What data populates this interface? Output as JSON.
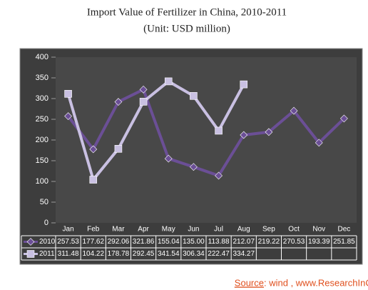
{
  "chart_data": {
    "type": "line",
    "title": "Import Value of Fertilizer in China, 2010-2011",
    "subtitle": "(Unit: USD million)",
    "categories": [
      "Jan",
      "Feb",
      "Mar",
      "Apr",
      "May",
      "Jun",
      "Jul",
      "Aug",
      "Sep",
      "Oct",
      "Nov",
      "Dec"
    ],
    "series": [
      {
        "name": "2010",
        "color": "#6b4f96",
        "marker": "diamond",
        "values": [
          257.53,
          177.62,
          292.06,
          321.86,
          155.04,
          135.0,
          113.88,
          212.07,
          219.22,
          270.53,
          193.39,
          251.85
        ],
        "value_labels": [
          "257.53",
          "177.62",
          "292.06",
          "321.86",
          "155.04",
          "135.00",
          "113.88",
          "212.07",
          "219.22",
          "270.53",
          "193.39",
          "251.85"
        ]
      },
      {
        "name": "2011",
        "color": "#c9c0e2",
        "marker": "square",
        "values": [
          311.48,
          104.22,
          178.78,
          292.45,
          341.54,
          306.34,
          222.47,
          334.27,
          null,
          null,
          null,
          null
        ],
        "value_labels": [
          "311.48",
          "104.22",
          "178.78",
          "292.45",
          "341.54",
          "306.34",
          "222.47",
          "334.27",
          null,
          null,
          null,
          null
        ]
      }
    ],
    "ylim": [
      0,
      400
    ],
    "yticks": [
      0,
      50,
      100,
      150,
      200,
      250,
      300,
      350,
      400
    ],
    "source_label": "Source",
    "source_text": ": wind , www.ResearchInChina.com"
  }
}
